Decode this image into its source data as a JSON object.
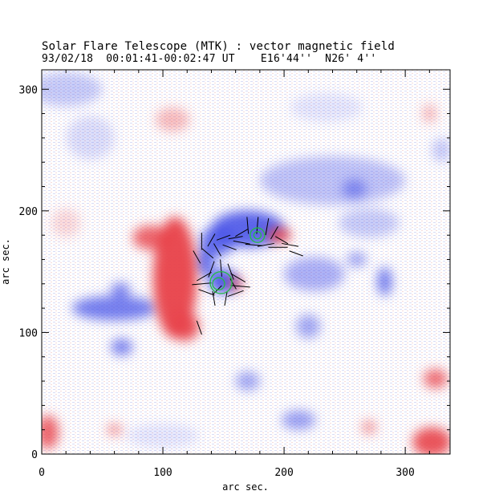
{
  "header": {
    "title": "Solar Flare Telescope (MTK) : vector magnetic field",
    "subtitle": "93/02/18  00:01:41-00:02:47 UT    E16'44''  N26' 4''"
  },
  "colors": {
    "positive": "#e8424a",
    "negative": "#4a55e8",
    "vectors": "#000000",
    "contours": "#22bb44"
  },
  "chart_data": {
    "type": "heatmap",
    "title": "Solar Flare Telescope (MTK) : vector magnetic field",
    "xlabel": "arc sec.",
    "ylabel": "arc sec.",
    "xlim": [
      0,
      337
    ],
    "ylim": [
      0,
      316
    ],
    "x_ticks": [
      0,
      100,
      200,
      300
    ],
    "y_ticks": [
      0,
      100,
      200,
      300
    ],
    "x_tick_labels": [
      "0",
      "100",
      "200",
      "300"
    ],
    "y_tick_labels": [
      "0",
      "100",
      "200",
      "300"
    ],
    "legend": "none",
    "positive_regions": [
      {
        "x": 110,
        "y": 145,
        "rx": 18,
        "ry": 50,
        "strength": 0.95
      },
      {
        "x": 90,
        "y": 178,
        "rx": 15,
        "ry": 10,
        "strength": 0.8
      },
      {
        "x": 118,
        "y": 105,
        "rx": 12,
        "ry": 12,
        "strength": 0.9
      },
      {
        "x": 196,
        "y": 180,
        "rx": 10,
        "ry": 6,
        "strength": 0.9
      },
      {
        "x": 160,
        "y": 140,
        "rx": 6,
        "ry": 6,
        "strength": 0.7
      },
      {
        "x": 108,
        "y": 275,
        "rx": 14,
        "ry": 10,
        "strength": 0.35
      },
      {
        "x": 5,
        "y": 18,
        "rx": 9,
        "ry": 14,
        "strength": 0.8
      },
      {
        "x": 322,
        "y": 10,
        "rx": 16,
        "ry": 12,
        "strength": 0.9
      },
      {
        "x": 325,
        "y": 62,
        "rx": 10,
        "ry": 8,
        "strength": 0.75
      },
      {
        "x": 60,
        "y": 20,
        "rx": 6,
        "ry": 5,
        "strength": 0.55
      },
      {
        "x": 270,
        "y": 22,
        "rx": 6,
        "ry": 6,
        "strength": 0.5
      },
      {
        "x": 320,
        "y": 280,
        "rx": 6,
        "ry": 8,
        "strength": 0.35
      },
      {
        "x": 20,
        "y": 190,
        "rx": 12,
        "ry": 12,
        "strength": 0.2
      }
    ],
    "negative_regions": [
      {
        "x": 170,
        "y": 185,
        "rx": 30,
        "ry": 15,
        "strength": 0.9
      },
      {
        "x": 145,
        "y": 175,
        "rx": 14,
        "ry": 12,
        "strength": 0.85
      },
      {
        "x": 150,
        "y": 142,
        "rx": 12,
        "ry": 10,
        "strength": 0.95
      },
      {
        "x": 135,
        "y": 158,
        "rx": 8,
        "ry": 12,
        "strength": 0.8
      },
      {
        "x": 60,
        "y": 120,
        "rx": 35,
        "ry": 10,
        "strength": 0.75
      },
      {
        "x": 65,
        "y": 135,
        "rx": 8,
        "ry": 6,
        "strength": 0.7
      },
      {
        "x": 66,
        "y": 88,
        "rx": 9,
        "ry": 7,
        "strength": 0.7
      },
      {
        "x": 225,
        "y": 148,
        "rx": 25,
        "ry": 14,
        "strength": 0.45
      },
      {
        "x": 283,
        "y": 142,
        "rx": 6,
        "ry": 12,
        "strength": 0.75
      },
      {
        "x": 240,
        "y": 225,
        "rx": 60,
        "ry": 20,
        "strength": 0.35
      },
      {
        "x": 258,
        "y": 218,
        "rx": 10,
        "ry": 8,
        "strength": 0.55
      },
      {
        "x": 270,
        "y": 190,
        "rx": 25,
        "ry": 12,
        "strength": 0.3
      },
      {
        "x": 260,
        "y": 160,
        "rx": 8,
        "ry": 6,
        "strength": 0.55
      },
      {
        "x": 220,
        "y": 105,
        "rx": 10,
        "ry": 10,
        "strength": 0.5
      },
      {
        "x": 170,
        "y": 60,
        "rx": 10,
        "ry": 8,
        "strength": 0.5
      },
      {
        "x": 212,
        "y": 28,
        "rx": 14,
        "ry": 8,
        "strength": 0.55
      },
      {
        "x": 40,
        "y": 260,
        "rx": 20,
        "ry": 18,
        "strength": 0.2
      },
      {
        "x": 20,
        "y": 300,
        "rx": 30,
        "ry": 14,
        "strength": 0.3
      },
      {
        "x": 330,
        "y": 250,
        "rx": 8,
        "ry": 10,
        "strength": 0.3
      },
      {
        "x": 235,
        "y": 285,
        "rx": 30,
        "ry": 12,
        "strength": 0.15
      },
      {
        "x": 100,
        "y": 15,
        "rx": 30,
        "ry": 10,
        "strength": 0.15
      }
    ],
    "transverse_vectors": [
      {
        "x": 170,
        "y": 188,
        "angle": 95,
        "len": 7
      },
      {
        "x": 178,
        "y": 188,
        "angle": 85,
        "len": 7
      },
      {
        "x": 186,
        "y": 187,
        "angle": 80,
        "len": 7
      },
      {
        "x": 165,
        "y": 182,
        "angle": 30,
        "len": 6
      },
      {
        "x": 192,
        "y": 182,
        "angle": 60,
        "len": 6
      },
      {
        "x": 160,
        "y": 178,
        "angle": 10,
        "len": 6
      },
      {
        "x": 198,
        "y": 176,
        "angle": 150,
        "len": 6
      },
      {
        "x": 165,
        "y": 174,
        "angle": 170,
        "len": 7
      },
      {
        "x": 175,
        "y": 172,
        "angle": 175,
        "len": 7
      },
      {
        "x": 185,
        "y": 172,
        "angle": 10,
        "len": 7
      },
      {
        "x": 195,
        "y": 170,
        "angle": 0,
        "len": 8
      },
      {
        "x": 205,
        "y": 172,
        "angle": 170,
        "len": 7
      },
      {
        "x": 155,
        "y": 170,
        "angle": 160,
        "len": 6
      },
      {
        "x": 145,
        "y": 168,
        "angle": 120,
        "len": 6
      },
      {
        "x": 132,
        "y": 175,
        "angle": 90,
        "len": 7
      },
      {
        "x": 140,
        "y": 176,
        "angle": 60,
        "len": 6
      },
      {
        "x": 150,
        "y": 178,
        "angle": 20,
        "len": 6
      },
      {
        "x": 137,
        "y": 165,
        "angle": 140,
        "len": 6
      },
      {
        "x": 128,
        "y": 162,
        "angle": 120,
        "len": 6
      },
      {
        "x": 210,
        "y": 165,
        "angle": 160,
        "len": 6
      },
      {
        "x": 140,
        "y": 152,
        "angle": 70,
        "len": 7
      },
      {
        "x": 148,
        "y": 153,
        "angle": 95,
        "len": 7
      },
      {
        "x": 156,
        "y": 150,
        "angle": 110,
        "len": 7
      },
      {
        "x": 134,
        "y": 146,
        "angle": 30,
        "len": 7
      },
      {
        "x": 162,
        "y": 145,
        "angle": 150,
        "len": 7
      },
      {
        "x": 132,
        "y": 140,
        "angle": 5,
        "len": 8
      },
      {
        "x": 164,
        "y": 138,
        "angle": 175,
        "len": 8
      },
      {
        "x": 136,
        "y": 133,
        "angle": 160,
        "len": 7
      },
      {
        "x": 160,
        "y": 132,
        "angle": 20,
        "len": 7
      },
      {
        "x": 142,
        "y": 128,
        "angle": 100,
        "len": 6
      },
      {
        "x": 152,
        "y": 128,
        "angle": 80,
        "len": 6
      },
      {
        "x": 158,
        "y": 140,
        "angle": 120,
        "len": 5
      },
      {
        "x": 145,
        "y": 135,
        "angle": 45,
        "len": 5
      },
      {
        "x": 130,
        "y": 104,
        "angle": 110,
        "len": 6
      }
    ],
    "contours": [
      {
        "x": 178,
        "y": 180,
        "r": 6
      },
      {
        "x": 178,
        "y": 180,
        "r": 3
      },
      {
        "x": 148,
        "y": 141,
        "r": 9
      },
      {
        "x": 146,
        "y": 140,
        "r": 5
      }
    ]
  }
}
